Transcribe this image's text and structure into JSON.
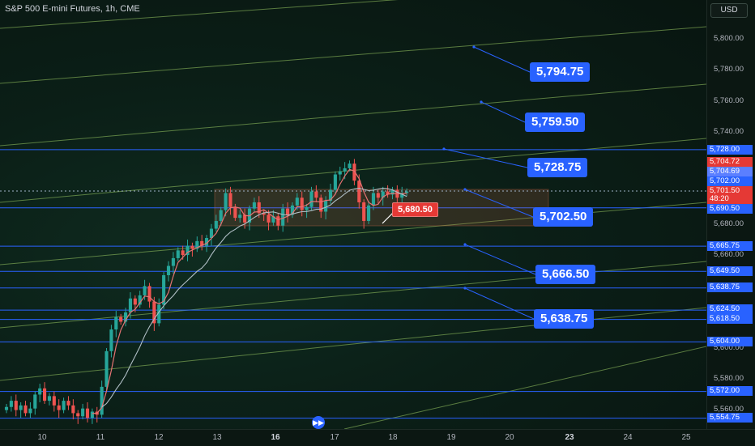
{
  "header": {
    "symbol_title": "S&P 500 E-mini Futures, 1h, CME"
  },
  "currency": "USD",
  "price_axis_ticks": [
    "5,800.00",
    "5,780.00",
    "5,760.00",
    "5,740.00",
    "5,680.00",
    "5,660.00",
    "5,600.00",
    "5,580.00",
    "5,560.00"
  ],
  "level_badges": [
    {
      "label": "5,728.00",
      "color": "#2962ff"
    },
    {
      "label": "5,704.72",
      "color": "#e53935"
    },
    {
      "label": "5,704.69",
      "color": "#5b7fff"
    },
    {
      "label": "5,702.00",
      "color": "#2962ff"
    },
    {
      "label": "5,701.50",
      "color": "#e53935"
    },
    {
      "label": "48:20",
      "color": "#e53935"
    },
    {
      "label": "5,690.50",
      "color": "#2962ff"
    },
    {
      "label": "5,665.75",
      "color": "#2962ff"
    },
    {
      "label": "5,649.50",
      "color": "#2962ff"
    },
    {
      "label": "5,638.75",
      "color": "#2962ff"
    },
    {
      "label": "5,624.50",
      "color": "#2962ff"
    },
    {
      "label": "5,618.50",
      "color": "#2962ff"
    },
    {
      "label": "5,604.00",
      "color": "#2962ff"
    },
    {
      "label": "5,572.00",
      "color": "#2962ff"
    },
    {
      "label": "5,554.75",
      "color": "#2962ff"
    }
  ],
  "callouts": [
    "5,794.75",
    "5,759.50",
    "5,728.75",
    "5,702.50",
    "5,666.50",
    "5,638.75"
  ],
  "price_label": "5,680.50",
  "time_axis": [
    {
      "label": "10",
      "bold": false
    },
    {
      "label": "11",
      "bold": false
    },
    {
      "label": "12",
      "bold": false
    },
    {
      "label": "13",
      "bold": false
    },
    {
      "label": "16",
      "bold": true
    },
    {
      "label": "17",
      "bold": false
    },
    {
      "label": "18",
      "bold": false
    },
    {
      "label": "19",
      "bold": false
    },
    {
      "label": "20",
      "bold": false
    },
    {
      "label": "23",
      "bold": true
    },
    {
      "label": "24",
      "bold": false
    },
    {
      "label": "25",
      "bold": false
    }
  ],
  "nav_icon": "fast-forward-icon",
  "colors": {
    "up": "#26a69a",
    "down": "#ef5350",
    "level": "#2962ff",
    "channel": "#9ccc65"
  },
  "chart_data": {
    "type": "candlestick",
    "title": "S&P 500 E-mini Futures, 1h, CME",
    "ylim": [
      5550,
      5810
    ],
    "horizontal_levels": [
      5728.0,
      5690.5,
      5665.75,
      5649.5,
      5638.75,
      5624.5,
      5618.5,
      5604.0,
      5572.0,
      5554.75
    ],
    "current_price": 5701.5,
    "consolidation_zone": [
      5678,
      5702
    ],
    "closes": [
      5562,
      5566,
      5560,
      5563,
      5558,
      5561,
      5570,
      5574,
      5566,
      5569,
      5563,
      5560,
      5566,
      5563,
      5558,
      5556,
      5561,
      5555,
      5559,
      5557,
      5575,
      5598,
      5612,
      5620,
      5617,
      5623,
      5632,
      5628,
      5634,
      5640,
      5630,
      5616,
      5628,
      5647,
      5653,
      5658,
      5663,
      5660,
      5666,
      5664,
      5669,
      5666,
      5671,
      5677,
      5682,
      5689,
      5700,
      5691,
      5684,
      5686,
      5681,
      5690,
      5694,
      5687,
      5686,
      5681,
      5685,
      5679,
      5690,
      5686,
      5692,
      5697,
      5689,
      5691,
      5701,
      5697,
      5688,
      5695,
      5702,
      5712,
      5714,
      5716,
      5719,
      5708,
      5694,
      5682,
      5692,
      5700,
      5697,
      5701,
      5699,
      5702,
      5697,
      5700,
      5701
    ]
  }
}
